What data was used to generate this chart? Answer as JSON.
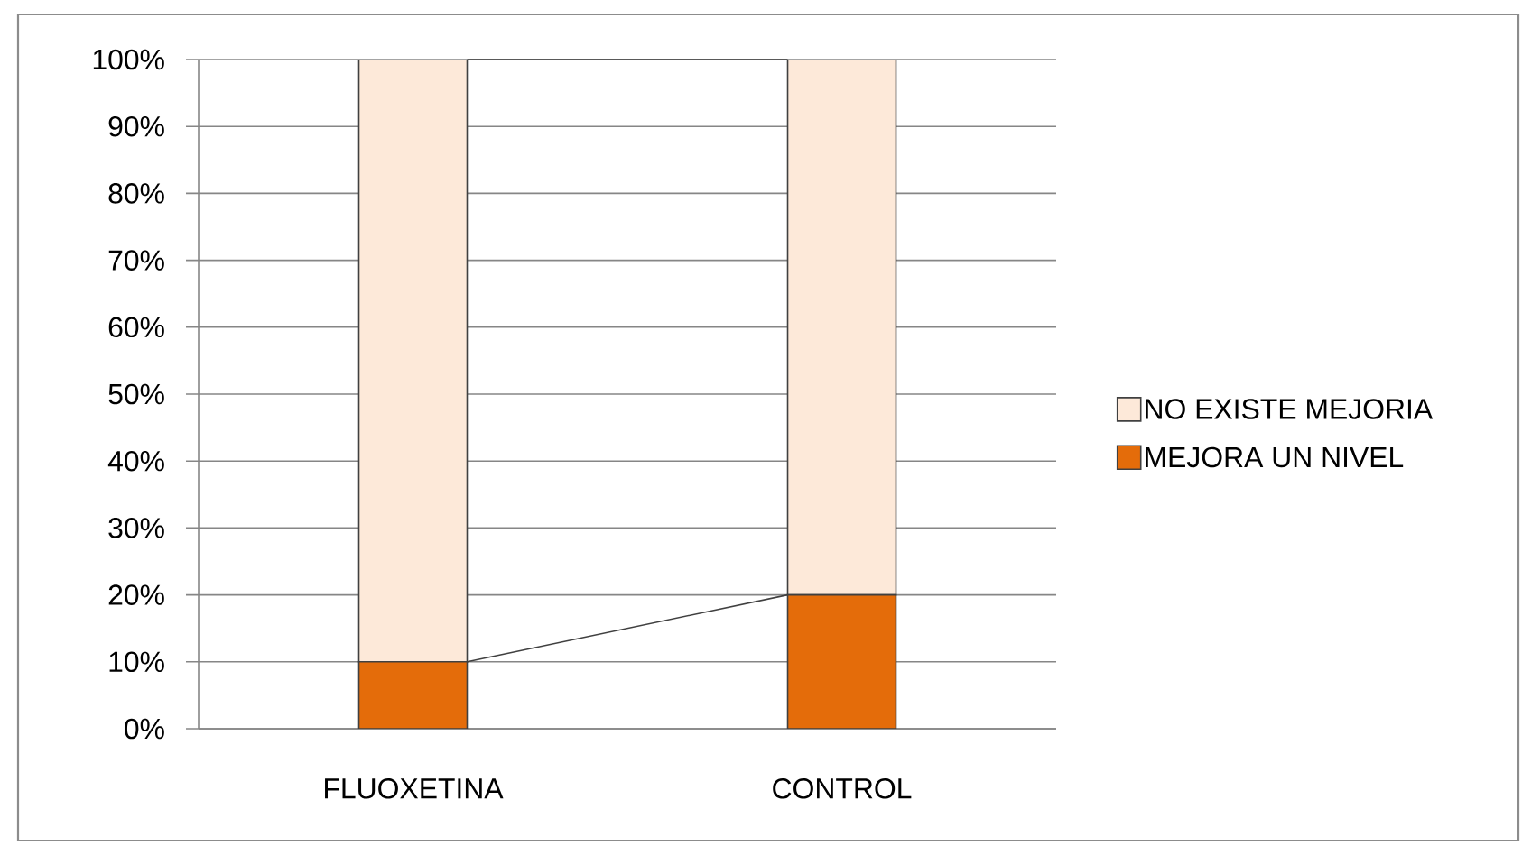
{
  "chart_data": {
    "type": "bar",
    "stacked": true,
    "categories": [
      "FLUOXETINA",
      "CONTROL"
    ],
    "series": [
      {
        "name": "MEJORA UN NIVEL",
        "color": "#e46c0a",
        "values": [
          10,
          20
        ]
      },
      {
        "name": "NO EXISTE MEJORIA",
        "color": "#fde9d9",
        "values": [
          90,
          80
        ]
      }
    ],
    "ylim": [
      0,
      100
    ],
    "yticks": [
      {
        "value": 0,
        "label": "0%"
      },
      {
        "value": 10,
        "label": "10%"
      },
      {
        "value": 20,
        "label": "20%"
      },
      {
        "value": 30,
        "label": "30%"
      },
      {
        "value": 40,
        "label": "40%"
      },
      {
        "value": 50,
        "label": "50%"
      },
      {
        "value": 60,
        "label": "60%"
      },
      {
        "value": 70,
        "label": "70%"
      },
      {
        "value": 80,
        "label": "80%"
      },
      {
        "value": 90,
        "label": "90%"
      },
      {
        "value": 100,
        "label": "100%"
      }
    ],
    "grid": "y",
    "legend": "right"
  }
}
